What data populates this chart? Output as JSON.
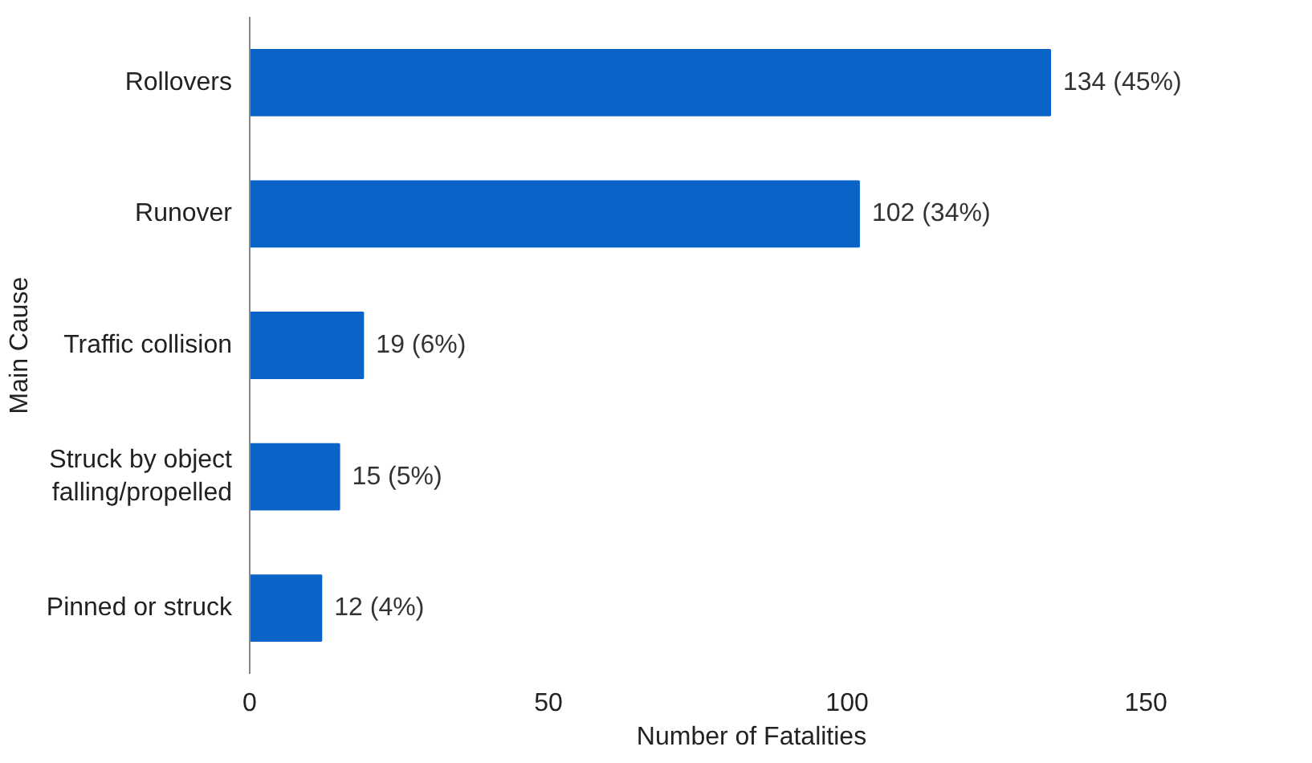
{
  "chart_data": {
    "type": "bar",
    "orientation": "horizontal",
    "xlabel": "Number of Fatalities",
    "ylabel": "Main Cause",
    "categories": [
      "Rollovers",
      "Runover",
      "Traffic collision",
      "Struck by object falling/propelled",
      "Pinned or struck"
    ],
    "values": [
      134,
      102,
      19,
      15,
      12
    ],
    "value_labels": [
      "134 (45%)",
      "102 (34%)",
      "19 (6%)",
      "15 (5%)",
      "12 (4%)"
    ],
    "color": "#0a64c8",
    "xlim": [
      0,
      150
    ],
    "xticks": [
      0,
      50,
      100,
      150
    ],
    "grid": false,
    "legend": false
  }
}
